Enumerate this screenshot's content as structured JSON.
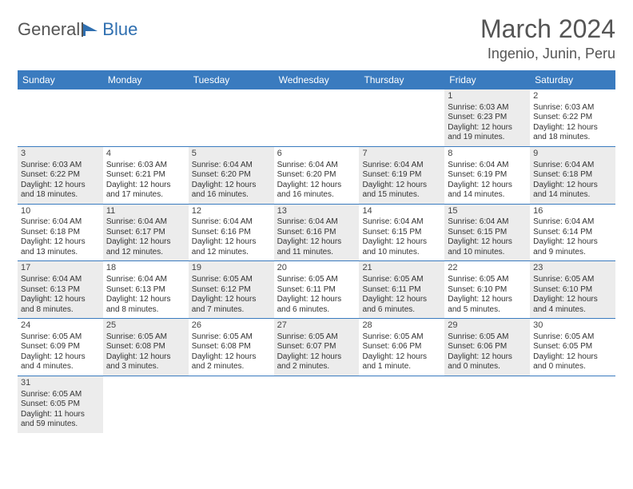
{
  "logo": {
    "general": "General",
    "blue": "Blue"
  },
  "title": "March 2024",
  "location": "Ingenio, Junin, Peru",
  "colors": {
    "header_bg": "#3a7bbf",
    "header_text": "#ffffff",
    "row_divider": "#3a7bbf",
    "shaded_cell": "#ececec",
    "text": "#333333",
    "title_text": "#555555"
  },
  "day_headers": [
    "Sunday",
    "Monday",
    "Tuesday",
    "Wednesday",
    "Thursday",
    "Friday",
    "Saturday"
  ],
  "weeks": [
    [
      {
        "empty": true
      },
      {
        "empty": true
      },
      {
        "empty": true
      },
      {
        "empty": true
      },
      {
        "empty": true
      },
      {
        "day": "1",
        "shaded": true,
        "sunrise": "Sunrise: 6:03 AM",
        "sunset": "Sunset: 6:23 PM",
        "daylight1": "Daylight: 12 hours",
        "daylight2": "and 19 minutes."
      },
      {
        "day": "2",
        "shaded": false,
        "sunrise": "Sunrise: 6:03 AM",
        "sunset": "Sunset: 6:22 PM",
        "daylight1": "Daylight: 12 hours",
        "daylight2": "and 18 minutes."
      }
    ],
    [
      {
        "day": "3",
        "shaded": true,
        "sunrise": "Sunrise: 6:03 AM",
        "sunset": "Sunset: 6:22 PM",
        "daylight1": "Daylight: 12 hours",
        "daylight2": "and 18 minutes."
      },
      {
        "day": "4",
        "shaded": false,
        "sunrise": "Sunrise: 6:03 AM",
        "sunset": "Sunset: 6:21 PM",
        "daylight1": "Daylight: 12 hours",
        "daylight2": "and 17 minutes."
      },
      {
        "day": "5",
        "shaded": true,
        "sunrise": "Sunrise: 6:04 AM",
        "sunset": "Sunset: 6:20 PM",
        "daylight1": "Daylight: 12 hours",
        "daylight2": "and 16 minutes."
      },
      {
        "day": "6",
        "shaded": false,
        "sunrise": "Sunrise: 6:04 AM",
        "sunset": "Sunset: 6:20 PM",
        "daylight1": "Daylight: 12 hours",
        "daylight2": "and 16 minutes."
      },
      {
        "day": "7",
        "shaded": true,
        "sunrise": "Sunrise: 6:04 AM",
        "sunset": "Sunset: 6:19 PM",
        "daylight1": "Daylight: 12 hours",
        "daylight2": "and 15 minutes."
      },
      {
        "day": "8",
        "shaded": false,
        "sunrise": "Sunrise: 6:04 AM",
        "sunset": "Sunset: 6:19 PM",
        "daylight1": "Daylight: 12 hours",
        "daylight2": "and 14 minutes."
      },
      {
        "day": "9",
        "shaded": true,
        "sunrise": "Sunrise: 6:04 AM",
        "sunset": "Sunset: 6:18 PM",
        "daylight1": "Daylight: 12 hours",
        "daylight2": "and 14 minutes."
      }
    ],
    [
      {
        "day": "10",
        "shaded": false,
        "sunrise": "Sunrise: 6:04 AM",
        "sunset": "Sunset: 6:18 PM",
        "daylight1": "Daylight: 12 hours",
        "daylight2": "and 13 minutes."
      },
      {
        "day": "11",
        "shaded": true,
        "sunrise": "Sunrise: 6:04 AM",
        "sunset": "Sunset: 6:17 PM",
        "daylight1": "Daylight: 12 hours",
        "daylight2": "and 12 minutes."
      },
      {
        "day": "12",
        "shaded": false,
        "sunrise": "Sunrise: 6:04 AM",
        "sunset": "Sunset: 6:16 PM",
        "daylight1": "Daylight: 12 hours",
        "daylight2": "and 12 minutes."
      },
      {
        "day": "13",
        "shaded": true,
        "sunrise": "Sunrise: 6:04 AM",
        "sunset": "Sunset: 6:16 PM",
        "daylight1": "Daylight: 12 hours",
        "daylight2": "and 11 minutes."
      },
      {
        "day": "14",
        "shaded": false,
        "sunrise": "Sunrise: 6:04 AM",
        "sunset": "Sunset: 6:15 PM",
        "daylight1": "Daylight: 12 hours",
        "daylight2": "and 10 minutes."
      },
      {
        "day": "15",
        "shaded": true,
        "sunrise": "Sunrise: 6:04 AM",
        "sunset": "Sunset: 6:15 PM",
        "daylight1": "Daylight: 12 hours",
        "daylight2": "and 10 minutes."
      },
      {
        "day": "16",
        "shaded": false,
        "sunrise": "Sunrise: 6:04 AM",
        "sunset": "Sunset: 6:14 PM",
        "daylight1": "Daylight: 12 hours",
        "daylight2": "and 9 minutes."
      }
    ],
    [
      {
        "day": "17",
        "shaded": true,
        "sunrise": "Sunrise: 6:04 AM",
        "sunset": "Sunset: 6:13 PM",
        "daylight1": "Daylight: 12 hours",
        "daylight2": "and 8 minutes."
      },
      {
        "day": "18",
        "shaded": false,
        "sunrise": "Sunrise: 6:04 AM",
        "sunset": "Sunset: 6:13 PM",
        "daylight1": "Daylight: 12 hours",
        "daylight2": "and 8 minutes."
      },
      {
        "day": "19",
        "shaded": true,
        "sunrise": "Sunrise: 6:05 AM",
        "sunset": "Sunset: 6:12 PM",
        "daylight1": "Daylight: 12 hours",
        "daylight2": "and 7 minutes."
      },
      {
        "day": "20",
        "shaded": false,
        "sunrise": "Sunrise: 6:05 AM",
        "sunset": "Sunset: 6:11 PM",
        "daylight1": "Daylight: 12 hours",
        "daylight2": "and 6 minutes."
      },
      {
        "day": "21",
        "shaded": true,
        "sunrise": "Sunrise: 6:05 AM",
        "sunset": "Sunset: 6:11 PM",
        "daylight1": "Daylight: 12 hours",
        "daylight2": "and 6 minutes."
      },
      {
        "day": "22",
        "shaded": false,
        "sunrise": "Sunrise: 6:05 AM",
        "sunset": "Sunset: 6:10 PM",
        "daylight1": "Daylight: 12 hours",
        "daylight2": "and 5 minutes."
      },
      {
        "day": "23",
        "shaded": true,
        "sunrise": "Sunrise: 6:05 AM",
        "sunset": "Sunset: 6:10 PM",
        "daylight1": "Daylight: 12 hours",
        "daylight2": "and 4 minutes."
      }
    ],
    [
      {
        "day": "24",
        "shaded": false,
        "sunrise": "Sunrise: 6:05 AM",
        "sunset": "Sunset: 6:09 PM",
        "daylight1": "Daylight: 12 hours",
        "daylight2": "and 4 minutes."
      },
      {
        "day": "25",
        "shaded": true,
        "sunrise": "Sunrise: 6:05 AM",
        "sunset": "Sunset: 6:08 PM",
        "daylight1": "Daylight: 12 hours",
        "daylight2": "and 3 minutes."
      },
      {
        "day": "26",
        "shaded": false,
        "sunrise": "Sunrise: 6:05 AM",
        "sunset": "Sunset: 6:08 PM",
        "daylight1": "Daylight: 12 hours",
        "daylight2": "and 2 minutes."
      },
      {
        "day": "27",
        "shaded": true,
        "sunrise": "Sunrise: 6:05 AM",
        "sunset": "Sunset: 6:07 PM",
        "daylight1": "Daylight: 12 hours",
        "daylight2": "and 2 minutes."
      },
      {
        "day": "28",
        "shaded": false,
        "sunrise": "Sunrise: 6:05 AM",
        "sunset": "Sunset: 6:06 PM",
        "daylight1": "Daylight: 12 hours",
        "daylight2": "and 1 minute."
      },
      {
        "day": "29",
        "shaded": true,
        "sunrise": "Sunrise: 6:05 AM",
        "sunset": "Sunset: 6:06 PM",
        "daylight1": "Daylight: 12 hours",
        "daylight2": "and 0 minutes."
      },
      {
        "day": "30",
        "shaded": false,
        "sunrise": "Sunrise: 6:05 AM",
        "sunset": "Sunset: 6:05 PM",
        "daylight1": "Daylight: 12 hours",
        "daylight2": "and 0 minutes."
      }
    ],
    [
      {
        "day": "31",
        "shaded": true,
        "sunrise": "Sunrise: 6:05 AM",
        "sunset": "Sunset: 6:05 PM",
        "daylight1": "Daylight: 11 hours",
        "daylight2": "and 59 minutes."
      },
      {
        "empty": true
      },
      {
        "empty": true
      },
      {
        "empty": true
      },
      {
        "empty": true
      },
      {
        "empty": true
      },
      {
        "empty": true
      }
    ]
  ]
}
